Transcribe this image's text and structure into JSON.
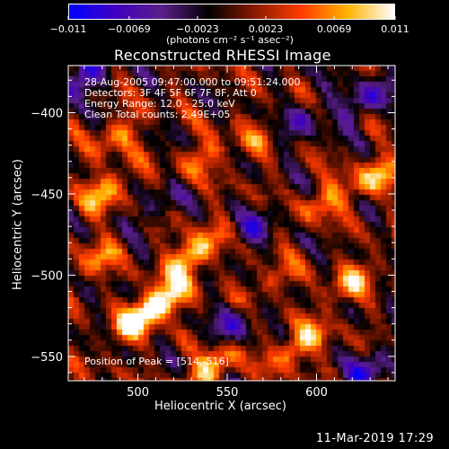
{
  "chart_data": {
    "type": "heatmap",
    "title": "Reconstructed RHESSI Image",
    "xlabel": "Heliocentric X (arcsec)",
    "ylabel": "Heliocentric Y (arcsec)",
    "xlim": [
      461,
      644
    ],
    "ylim": [
      -565,
      -371
    ],
    "x_ticks": [
      500,
      550,
      600
    ],
    "y_ticks": [
      -400,
      -450,
      -500,
      -550
    ],
    "colorbar": {
      "range": [
        -0.011,
        0.011
      ],
      "tick_values": [
        -0.011,
        -0.0069,
        -0.0023,
        0.0023,
        0.0069,
        0.011
      ],
      "tick_labels": [
        "−0.011",
        "−0.0069",
        "−0.0023",
        "0.0023",
        "0.0069",
        "0.011"
      ],
      "unit_label": "(photons cm⁻² s⁻¹ asec⁻²)",
      "colors": [
        "#0000ff",
        "#4000c0",
        "#5a1f8a",
        "#000000",
        "#8a1a00",
        "#ff3c00",
        "#ffb300",
        "#ffffff"
      ]
    },
    "annotations": [
      "28-Aug-2005 09:47:00.000 to 09:51:24.000",
      "Detectors: 3F 4F 5F 6F 7F 8F, Att 0",
      "Energy Range: 12.0 - 25.0 keV",
      "Clean     Total counts: 2.49E+05"
    ],
    "peak_label": "Position of Peak = [514,-516]",
    "peak": [
      514,
      -516
    ],
    "hotspots": [
      {
        "x": 531,
        "y": -487,
        "v": 0.011
      },
      {
        "x": 514,
        "y": -516,
        "v": 0.011
      },
      {
        "x": 499,
        "y": -528,
        "v": 0.009
      },
      {
        "x": 482,
        "y": -448,
        "v": 0.008
      },
      {
        "x": 488,
        "y": -414,
        "v": 0.006
      },
      {
        "x": 540,
        "y": -558,
        "v": 0.009
      },
      {
        "x": 590,
        "y": -543,
        "v": 0.009
      },
      {
        "x": 620,
        "y": -504,
        "v": 0.007
      },
      {
        "x": 633,
        "y": -440,
        "v": 0.008
      },
      {
        "x": 604,
        "y": -454,
        "v": 0.006
      },
      {
        "x": 574,
        "y": -506,
        "v": 0.005
      },
      {
        "x": 537,
        "y": -426,
        "v": 0.005
      },
      {
        "x": 478,
        "y": -490,
        "v": 0.006
      },
      {
        "x": 566,
        "y": -418,
        "v": 0.004
      }
    ],
    "coldspots": [
      {
        "x": 468,
        "y": -380,
        "v": -0.008
      },
      {
        "x": 566,
        "y": -470,
        "v": -0.005
      },
      {
        "x": 628,
        "y": -392,
        "v": -0.007
      },
      {
        "x": 556,
        "y": -528,
        "v": -0.006
      },
      {
        "x": 630,
        "y": -557,
        "v": -0.007
      },
      {
        "x": 592,
        "y": -405,
        "v": -0.005
      },
      {
        "x": 508,
        "y": -460,
        "v": -0.004
      }
    ]
  },
  "footer": {
    "timestamp": "11-Mar-2019 17:29"
  }
}
